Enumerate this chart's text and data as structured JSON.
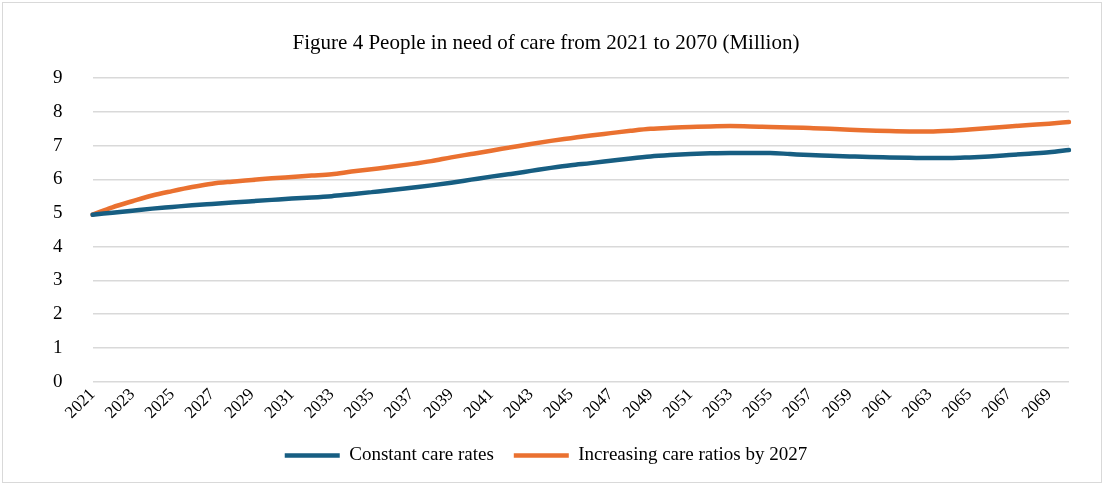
{
  "chart_data": {
    "type": "line",
    "title": "Figure 4 People in need of care from 2021 to 2070 (Million)",
    "categories": [
      "2021",
      null,
      "2023",
      null,
      "2025",
      null,
      "2027",
      null,
      "2029",
      null,
      "2031",
      null,
      "2033",
      null,
      "2035",
      null,
      "2037",
      null,
      "2039",
      null,
      "2041",
      null,
      "2043",
      null,
      "2045",
      null,
      "2047",
      null,
      "2049",
      null,
      "2051",
      null,
      "2053",
      null,
      "2055",
      null,
      "2057",
      null,
      "2059",
      null,
      "2061",
      null,
      "2063",
      null,
      "2065",
      null,
      "2067",
      null,
      "2069",
      null
    ],
    "series": [
      {
        "name": "Constant care rates",
        "color": "#175e82",
        "values": [
          4.95,
          5.01,
          5.07,
          5.13,
          5.18,
          5.23,
          5.27,
          5.31,
          5.35,
          5.39,
          5.43,
          5.46,
          5.5,
          5.56,
          5.62,
          5.68,
          5.75,
          5.82,
          5.9,
          5.99,
          6.08,
          6.16,
          6.25,
          6.34,
          6.42,
          6.48,
          6.55,
          6.62,
          6.68,
          6.72,
          6.75,
          6.77,
          6.78,
          6.78,
          6.78,
          6.75,
          6.72,
          6.7,
          6.68,
          6.66,
          6.65,
          6.64,
          6.63,
          6.63,
          6.65,
          6.68,
          6.72,
          6.76,
          6.8,
          6.87
        ]
      },
      {
        "name": "Increasing care ratios by 2027",
        "color": "#ea7130",
        "values": [
          4.95,
          5.17,
          5.35,
          5.52,
          5.65,
          5.77,
          5.87,
          5.93,
          5.98,
          6.03,
          6.07,
          6.11,
          6.15,
          6.23,
          6.3,
          6.37,
          6.45,
          6.54,
          6.65,
          6.75,
          6.85,
          6.95,
          7.05,
          7.14,
          7.22,
          7.3,
          7.37,
          7.44,
          7.5,
          7.53,
          7.55,
          7.57,
          7.58,
          7.57,
          7.55,
          7.54,
          7.52,
          7.5,
          7.47,
          7.45,
          7.43,
          7.42,
          7.42,
          7.44,
          7.48,
          7.52,
          7.57,
          7.61,
          7.65,
          7.7
        ]
      }
    ],
    "ylim": [
      0,
      9
    ],
    "yticks": [
      0,
      1,
      2,
      3,
      4,
      5,
      6,
      7,
      8,
      9
    ],
    "grid": "y",
    "legend": "bottom",
    "marker": "none",
    "line_style": "solid"
  }
}
